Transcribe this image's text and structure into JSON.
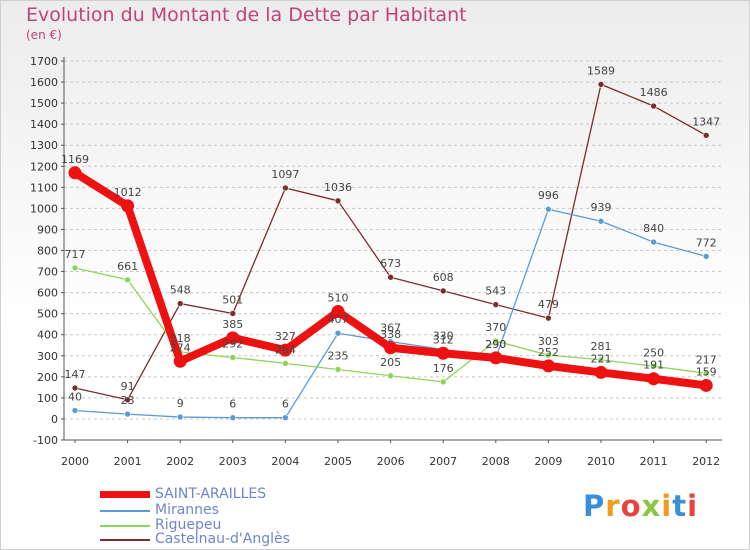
{
  "header": {
    "title": "Evolution du Montant de la Dette par Habitant",
    "subtitle": "(en €)"
  },
  "logo": {
    "text": "Proxiti",
    "letters": [
      "P",
      "r",
      "o",
      "x",
      "i",
      "t",
      "i"
    ],
    "colors": [
      "#3a8fd8",
      "#f29b1c",
      "#e8433c",
      "#8cc63f",
      "#f29b1c",
      "#3a8fd8",
      "#e8433c"
    ]
  },
  "chart_data": {
    "type": "line",
    "title": "Evolution du Montant de la Dette par Habitant",
    "subtitle": "(en €)",
    "categories": [
      "2000",
      "2001",
      "2002",
      "2003",
      "2004",
      "2005",
      "2006",
      "2007",
      "2008",
      "2009",
      "2010",
      "2011",
      "2012"
    ],
    "ylim": [
      -100,
      1700
    ],
    "yticks": [
      -100,
      0,
      100,
      200,
      300,
      400,
      500,
      600,
      700,
      800,
      900,
      1000,
      1100,
      1200,
      1300,
      1400,
      1500,
      1600,
      1700
    ],
    "grid": "horizontal dashed",
    "legend_position": "bottom-left",
    "series": [
      {
        "name": "SAINT-ARAILLES",
        "color": "#ee1111",
        "values": [
          1169,
          1012,
          274,
          385,
          327,
          510,
          338,
          312,
          290,
          252,
          221,
          191,
          159
        ],
        "labels": [
          "1169",
          "1012",
          "274",
          "385",
          "327",
          "510",
          "338",
          "312",
          "290",
          "252",
          "221",
          "191",
          "159"
        ]
      },
      {
        "name": "Mirannes",
        "color": "#5b9bd5",
        "values": [
          40,
          23,
          9,
          6,
          6,
          407,
          367,
          330,
          290,
          996,
          939,
          840,
          772
        ],
        "labels": [
          "40",
          "23",
          "9",
          "6",
          "6",
          "407",
          "367",
          "330",
          "290",
          "996",
          "939",
          "840",
          "772"
        ]
      },
      {
        "name": "Riguepeu",
        "color": "#8fd45a",
        "values": [
          717,
          661,
          318,
          292,
          264,
          235,
          205,
          176,
          370,
          303,
          281,
          250,
          217
        ],
        "labels": [
          "717",
          "661",
          "318",
          "292",
          "264",
          "235",
          "205",
          "176",
          "370",
          "303",
          "281",
          "250",
          "217"
        ]
      },
      {
        "name": "Castelnau-d'Anglès",
        "color": "#7b2c2c",
        "values": [
          147,
          91,
          548,
          501,
          1097,
          1036,
          673,
          608,
          543,
          479,
          1589,
          1486,
          1347
        ],
        "labels": [
          "147",
          "91",
          "548",
          "501",
          "1097",
          "1036",
          "673",
          "608",
          "543",
          "479",
          "1589",
          "1486",
          "1347"
        ]
      }
    ]
  }
}
